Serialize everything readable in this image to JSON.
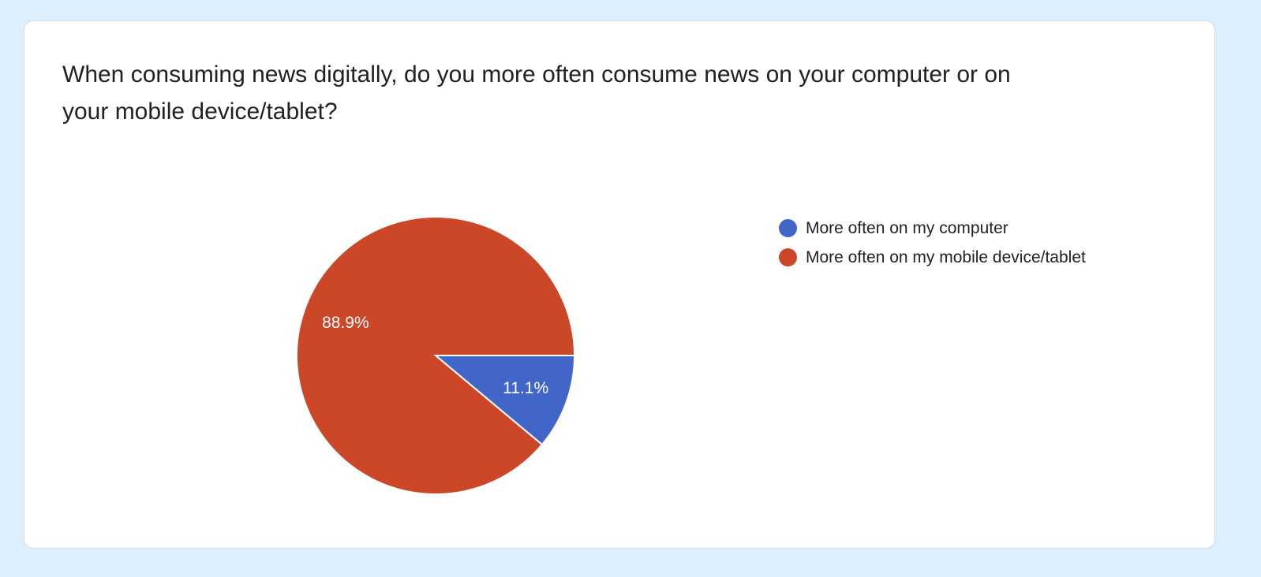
{
  "question": {
    "title": "When consuming news digitally, do you more often consume news on your computer or on your mobile device/tablet?"
  },
  "chart_data": {
    "type": "pie",
    "title": "When consuming news digitally, do you more often consume news on your computer or on your mobile device/tablet?",
    "slices": [
      {
        "label": "More often on my computer",
        "value": 11.1,
        "display": "11.1%",
        "color": "#4266c8"
      },
      {
        "label": "More often on my mobile device/tablet",
        "value": 88.9,
        "display": "88.9%",
        "color": "#cc4628"
      }
    ],
    "legend_position": "right",
    "data_labels": "percent"
  }
}
